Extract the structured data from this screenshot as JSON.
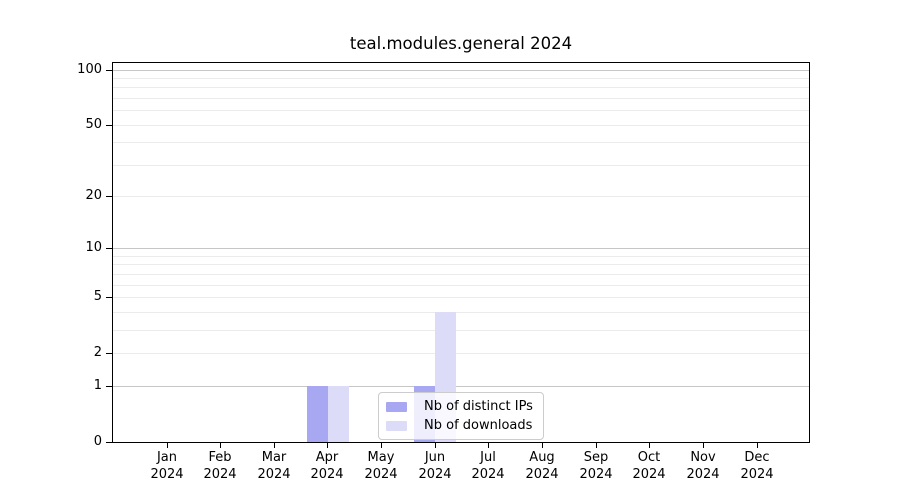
{
  "figure": {
    "title": "teal.modules.general 2024"
  },
  "legend": {
    "items": [
      {
        "label": "Nb of distinct IPs",
        "color": "#a8a8f2"
      },
      {
        "label": "Nb of downloads",
        "color": "#dcdcf8"
      }
    ]
  },
  "chart_data": {
    "type": "bar",
    "title": "teal.modules.general 2024",
    "categories": [
      "Jan",
      "Feb",
      "Mar",
      "Apr",
      "May",
      "Jun",
      "Jul",
      "Aug",
      "Sep",
      "Oct",
      "Nov",
      "Dec"
    ],
    "category_year": "2024",
    "series": [
      {
        "name": "Nb of distinct IPs",
        "color": "#a8a8f2",
        "values": [
          0,
          0,
          0,
          1,
          0,
          1,
          0,
          0,
          0,
          0,
          0,
          0
        ]
      },
      {
        "name": "Nb of downloads",
        "color": "#dcdcf8",
        "values": [
          0,
          0,
          0,
          1,
          0,
          4,
          0,
          0,
          0,
          0,
          0,
          0
        ]
      }
    ],
    "xlabel": "",
    "ylabel": "",
    "yscale": "log1p",
    "ylim": [
      0,
      110
    ],
    "y_ticks": [
      0,
      1,
      2,
      5,
      10,
      20,
      50,
      100
    ],
    "y_gridlines_major": [
      1,
      10,
      100
    ],
    "y_gridlines_minor": [
      2,
      3,
      4,
      5,
      6,
      7,
      8,
      9,
      20,
      30,
      40,
      50,
      60,
      70,
      80,
      90
    ],
    "grid": true,
    "legend_position": "lower center"
  }
}
